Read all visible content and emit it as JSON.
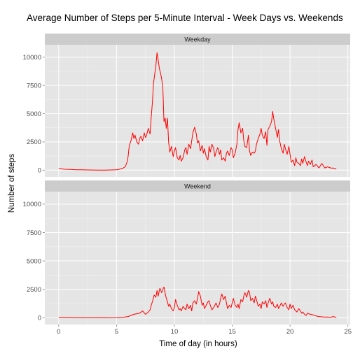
{
  "chart_data": {
    "type": "line",
    "title": "Average Number of Steps per 5-Minute Interval - Week Days vs. Weekends",
    "xlabel": "Time of day (in hours)",
    "ylabel": "Number of steps",
    "xlim": [
      -1.2,
      25.2
    ],
    "ylim": [
      -600,
      11100
    ],
    "x_ticks": [
      0,
      5,
      10,
      15,
      20,
      25
    ],
    "y_ticks": [
      0,
      2500,
      5000,
      7500,
      10000
    ],
    "line_color": "#ff0000",
    "panel_background": "#e5e5e5",
    "strip_background": "#cccccc",
    "grid": true,
    "panels": [
      {
        "name": "Weekday",
        "series": [
          {
            "x": [
              0,
              0.5,
              1,
              1.5,
              2,
              2.5,
              3,
              3.5,
              4,
              4.5,
              5,
              5.25,
              5.5,
              5.75,
              5.9,
              6,
              6.1,
              6.25,
              6.4,
              6.5,
              6.6,
              6.75,
              6.9,
              7,
              7.1,
              7.25,
              7.4,
              7.5,
              7.6,
              7.75,
              7.9,
              8,
              8.1,
              8.2,
              8.3,
              8.4,
              8.5,
              8.6,
              8.7,
              8.8,
              8.9,
              9,
              9.1,
              9.2,
              9.3,
              9.4,
              9.5,
              9.6,
              9.75,
              9.9,
              10,
              10.1,
              10.25,
              10.4,
              10.5,
              10.6,
              10.75,
              10.9,
              11,
              11.1,
              11.25,
              11.4,
              11.5,
              11.6,
              11.75,
              11.9,
              12,
              12.1,
              12.25,
              12.4,
              12.5,
              12.6,
              12.75,
              12.9,
              13,
              13.1,
              13.25,
              13.4,
              13.5,
              13.6,
              13.75,
              13.9,
              14,
              14.1,
              14.25,
              14.4,
              14.5,
              14.6,
              14.75,
              14.9,
              15,
              15.1,
              15.25,
              15.4,
              15.5,
              15.6,
              15.75,
              15.9,
              16,
              16.1,
              16.25,
              16.4,
              16.5,
              16.6,
              16.75,
              16.9,
              17,
              17.1,
              17.25,
              17.4,
              17.5,
              17.6,
              17.75,
              17.9,
              18,
              18.1,
              18.25,
              18.4,
              18.5,
              18.6,
              18.75,
              18.9,
              19,
              19.1,
              19.25,
              19.4,
              19.5,
              19.6,
              19.75,
              19.9,
              20,
              20.1,
              20.25,
              20.4,
              20.5,
              20.6,
              20.75,
              20.9,
              21,
              21.1,
              21.25,
              21.4,
              21.5,
              21.6,
              21.75,
              21.9,
              22,
              22.25,
              22.5,
              22.75,
              23,
              23.25,
              23.5,
              23.75,
              24
            ],
            "y": [
              150,
              80,
              60,
              40,
              30,
              20,
              10,
              5,
              5,
              20,
              40,
              80,
              150,
              300,
              700,
              1200,
              2200,
              2600,
              3300,
              2800,
              3100,
              2500,
              2300,
              2800,
              3000,
              2600,
              3300,
              2900,
              3100,
              3700,
              3200,
              4700,
              6000,
              7700,
              8500,
              9200,
              10400,
              9800,
              9000,
              8600,
              8100,
              7300,
              4300,
              4600,
              3700,
              4600,
              2500,
              1600,
              2100,
              1200,
              1700,
              2000,
              1100,
              900,
              1300,
              800,
              1100,
              1800,
              2000,
              1400,
              2300,
              1900,
              2600,
              3300,
              3800,
              3200,
              2400,
              2600,
              1700,
              2200,
              1500,
              1900,
              1200,
              900,
              2100,
              1600,
              2300,
              1900,
              1200,
              1600,
              2000,
              1400,
              1800,
              900,
              1100,
              800,
              1500,
              1700,
              1300,
              2000,
              1800,
              1100,
              1500,
              2300,
              3600,
              4200,
              3300,
              3700,
              2600,
              2100,
              2000,
              3100,
              1700,
              1300,
              1600,
              1500,
              1700,
              2300,
              2800,
              3200,
              3700,
              3100,
              2800,
              3400,
              2200,
              3600,
              3900,
              4300,
              5200,
              4500,
              3700,
              2900,
              3600,
              2600,
              1900,
              1500,
              2300,
              1900,
              1400,
              2100,
              1400,
              700,
              900,
              400,
              1100,
              700,
              600,
              400,
              1000,
              600,
              1200,
              700,
              400,
              800,
              500,
              900,
              300,
              500,
              200,
              600,
              200,
              300,
              200,
              180,
              100
            ]
          }
        ]
      },
      {
        "name": "Weekend",
        "series": [
          {
            "x": [
              0,
              1,
              2,
              3,
              4,
              5,
              5.5,
              6,
              6.25,
              6.5,
              6.75,
              7,
              7.25,
              7.5,
              7.75,
              7.9,
              8,
              8.1,
              8.25,
              8.4,
              8.5,
              8.6,
              8.75,
              8.9,
              9,
              9.1,
              9.25,
              9.4,
              9.5,
              9.6,
              9.75,
              9.9,
              10,
              10.1,
              10.25,
              10.4,
              10.5,
              10.6,
              10.75,
              10.9,
              11,
              11.1,
              11.25,
              11.4,
              11.5,
              11.6,
              11.75,
              11.9,
              12,
              12.1,
              12.25,
              12.4,
              12.5,
              12.6,
              12.75,
              12.9,
              13,
              13.1,
              13.25,
              13.4,
              13.5,
              13.6,
              13.75,
              13.9,
              14,
              14.1,
              14.25,
              14.4,
              14.5,
              14.6,
              14.75,
              14.9,
              15,
              15.1,
              15.25,
              15.4,
              15.5,
              15.6,
              15.75,
              15.9,
              16,
              16.1,
              16.25,
              16.4,
              16.5,
              16.6,
              16.75,
              16.9,
              17,
              17.1,
              17.25,
              17.4,
              17.5,
              17.6,
              17.75,
              17.9,
              18,
              18.1,
              18.25,
              18.4,
              18.5,
              18.6,
              18.75,
              18.9,
              19,
              19.1,
              19.25,
              19.4,
              19.5,
              19.6,
              19.75,
              19.9,
              20,
              20.1,
              20.25,
              20.4,
              20.5,
              20.6,
              20.75,
              20.9,
              21,
              21.1,
              21.25,
              21.4,
              21.5,
              21.75,
              22,
              22.25,
              22.5,
              22.75,
              23,
              23.25,
              23.5,
              23.75,
              24
            ],
            "y": [
              30,
              20,
              10,
              5,
              5,
              10,
              30,
              100,
              200,
              300,
              350,
              400,
              600,
              300,
              500,
              700,
              1100,
              1400,
              2000,
              1800,
              2400,
              1900,
              2600,
              2200,
              2500,
              2700,
              1900,
              1400,
              1000,
              1200,
              800,
              600,
              900,
              1600,
              1100,
              700,
              800,
              600,
              1000,
              800,
              700,
              1200,
              800,
              1100,
              600,
              1300,
              1500,
              1200,
              1700,
              2300,
              1900,
              1100,
              1300,
              800,
              1100,
              1400,
              1500,
              1100,
              700,
              900,
              1100,
              1300,
              900,
              1200,
              1700,
              2100,
              1600,
              1900,
              1300,
              800,
              1100,
              900,
              1300,
              1700,
              1100,
              900,
              1200,
              800,
              1600,
              1400,
              1900,
              2200,
              1800,
              2400,
              2200,
              1500,
              1700,
              1300,
              1900,
              1600,
              1000,
              1200,
              800,
              1400,
              1200,
              1500,
              900,
              1300,
              1700,
              1200,
              1400,
              1000,
              900,
              1200,
              800,
              1000,
              1300,
              1000,
              1200,
              1300,
              900,
              700,
              1200,
              800,
              1100,
              700,
              600,
              500,
              800,
              600,
              400,
              500,
              300,
              200,
              400,
              300,
              250,
              150,
              100,
              80,
              50,
              60,
              40,
              100,
              20
            ]
          }
        ]
      }
    ]
  }
}
